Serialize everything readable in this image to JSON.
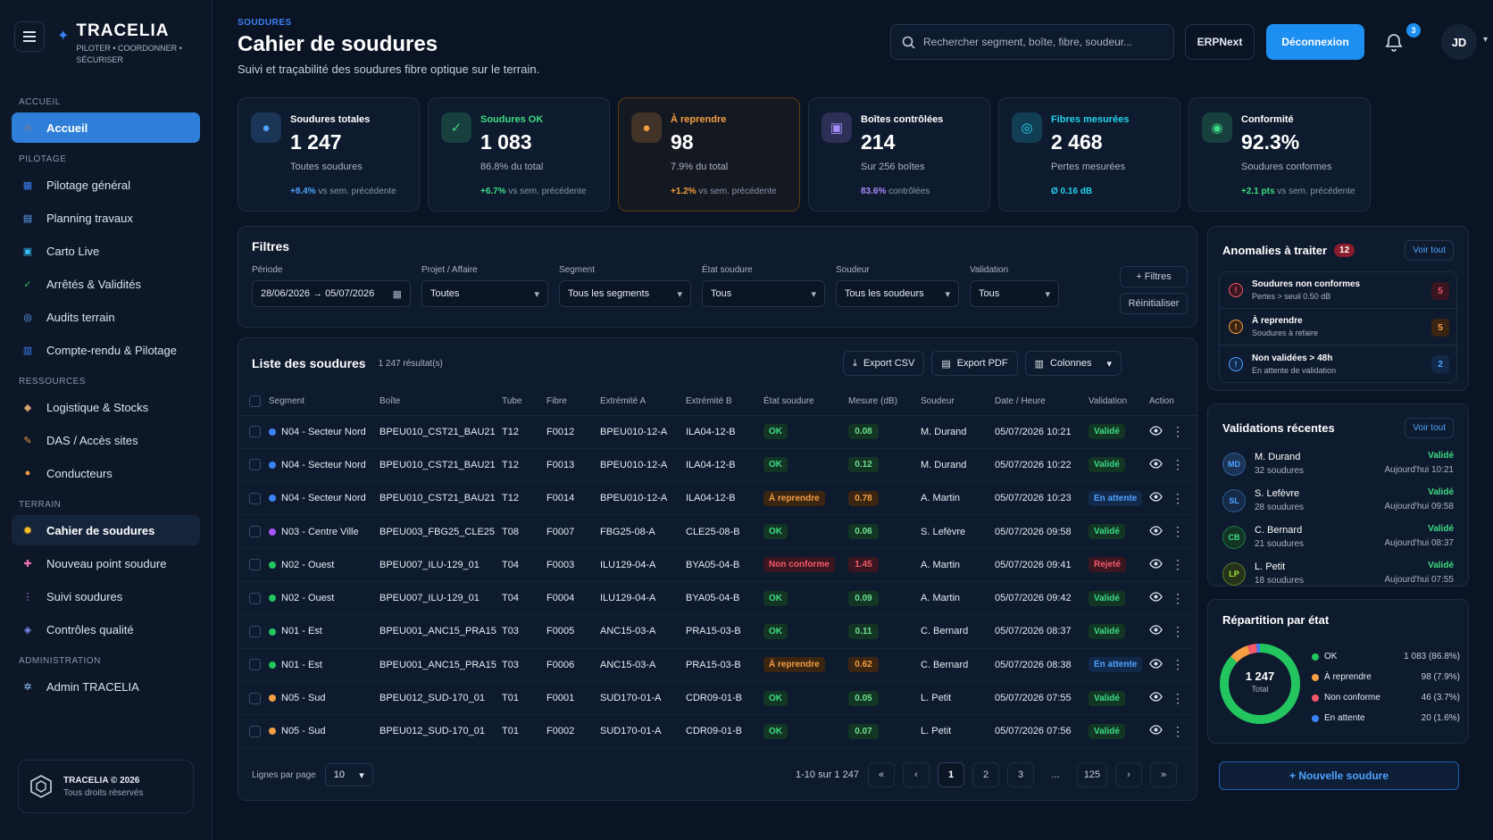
{
  "brand": {
    "name": "TRACELIA",
    "tagline": "PILOTER • COORDONNER • SÉCURISER"
  },
  "sidebar": {
    "sections": [
      {
        "title": "ACCUEIL",
        "items": [
          {
            "label": "Accueil",
            "icon": "home-icon"
          }
        ]
      },
      {
        "title": "PILOTAGE",
        "items": [
          {
            "label": "Pilotage général",
            "icon": "chart-icon"
          },
          {
            "label": "Planning travaux",
            "icon": "calendar-icon"
          },
          {
            "label": "Carto Live",
            "icon": "map-icon"
          },
          {
            "label": "Arrêtés & Validités",
            "icon": "shield-check-icon"
          },
          {
            "label": "Audits terrain",
            "icon": "audit-icon"
          },
          {
            "label": "Compte-rendu & Pilotage",
            "icon": "report-icon"
          }
        ]
      },
      {
        "title": "RESSOURCES",
        "items": [
          {
            "label": "Logistique & Stocks",
            "icon": "box-icon"
          },
          {
            "label": "DAS / Accès sites",
            "icon": "key-icon"
          },
          {
            "label": "Conducteurs",
            "icon": "user-icon"
          }
        ]
      },
      {
        "title": "TERRAIN",
        "items": [
          {
            "label": "Cahier de soudures",
            "icon": "spark-icon"
          },
          {
            "label": "Nouveau point soudure",
            "icon": "plus-point-icon"
          },
          {
            "label": "Suivi soudures",
            "icon": "track-icon"
          },
          {
            "label": "Contrôles qualité",
            "icon": "quality-icon"
          }
        ]
      },
      {
        "title": "ADMINISTRATION",
        "items": [
          {
            "label": "Admin TRACELIA",
            "icon": "gear-icon"
          }
        ]
      }
    ],
    "footer": {
      "line1": "TRACELIA © 2026",
      "line2": "Tous droits réservés"
    }
  },
  "header": {
    "breadcrumb": "SOUDURES",
    "title": "Cahier de soudures",
    "subtitle": "Suivi et traçabilité des soudures fibre optique sur le terrain.",
    "search_placeholder": "Rechercher segment, boîte, fibre, soudeur...",
    "erp_label": "ERPNext",
    "logout_label": "Déconnexion",
    "notif_count": "3",
    "user_initials": "JD"
  },
  "kpis": [
    {
      "label": "Soudures totales",
      "value": "1 247",
      "sub": "Toutes soudures",
      "trend": "+8.4%",
      "trend_note": " vs sem. précédente",
      "color": "#4ea3ff",
      "label_color": "#ffffff"
    },
    {
      "label": "Soudures OK",
      "value": "1 083",
      "sub": "86.8% du total",
      "trend": "+6.7%",
      "trend_note": " vs sem. précédente",
      "color": "#3ddc84",
      "label_color": "#3ddc84"
    },
    {
      "label": "À reprendre",
      "value": "98",
      "sub": "7.9% du total",
      "trend": "+1.2%",
      "trend_note": " vs sem. précédente",
      "color": "#f59e42",
      "label_color": "#f59e42"
    },
    {
      "label": "Boîtes contrôlées",
      "value": "214",
      "sub": "Sur 256 boîtes",
      "trend": "83.6%",
      "trend_note": " contrôlées",
      "color": "#a78bfa",
      "label_color": "#ffffff"
    },
    {
      "label": "Fibres mesurées",
      "value": "2 468",
      "sub": "Pertes mesurées",
      "trend": "Ø 0.16 dB",
      "trend_note": "",
      "color": "#22d3ee",
      "label_color": "#22d3ee"
    },
    {
      "label": "Conformité",
      "value": "92.3%",
      "sub": "Soudures conformes",
      "trend": "+2.1 pts",
      "trend_note": " vs sem. précédente",
      "color": "#3ddc84",
      "label_color": "#ffffff"
    }
  ],
  "filters": {
    "title": "Filtres",
    "fields": [
      {
        "label": "Période",
        "value": "28/06/2026 → 05/07/2026"
      },
      {
        "label": "Projet / Affaire",
        "value": "Toutes"
      },
      {
        "label": "Segment",
        "value": "Tous les segments"
      },
      {
        "label": "État soudure",
        "value": "Tous"
      },
      {
        "label": "Soudeur",
        "value": "Tous les soudeurs"
      },
      {
        "label": "Validation",
        "value": "Tous"
      }
    ],
    "btn_filters": "+ Filtres",
    "btn_reset": "Réinitialiser"
  },
  "table": {
    "title": "Liste des soudures",
    "count": "1 247 résultat(s)",
    "export_csv": "Export CSV",
    "export_pdf": "Export PDF",
    "columns_btn": "Colonnes",
    "headers": [
      "Segment",
      "Boîte",
      "Tube",
      "Fibre",
      "Extrémité A",
      "Extrémité B",
      "État soudure",
      "Mesure (dB)",
      "Soudeur",
      "Date / Heure",
      "Validation",
      "Action"
    ],
    "rows": [
      {
        "dot": "#3b82f6",
        "segment": "N04 - Secteur Nord",
        "boite": "BPEU010_CST21_BAU21",
        "tube": "T12",
        "fibre": "F0012",
        "extA": "BPEU010-12-A",
        "extB": "ILA04-12-B",
        "etat": "OK",
        "etat_k": "ok",
        "mesure": "0.08",
        "mes_k": "g",
        "soudeur": "M. Durand",
        "date": "05/07/2026 10:21",
        "valid": "Validé",
        "valid_k": "ok"
      },
      {
        "dot": "#3b82f6",
        "segment": "N04 - Secteur Nord",
        "boite": "BPEU010_CST21_BAU21",
        "tube": "T12",
        "fibre": "F0013",
        "extA": "BPEU010-12-A",
        "extB": "ILA04-12-B",
        "etat": "OK",
        "etat_k": "ok",
        "mesure": "0.12",
        "mes_k": "g",
        "soudeur": "M. Durand",
        "date": "05/07/2026 10:22",
        "valid": "Validé",
        "valid_k": "ok"
      },
      {
        "dot": "#3b82f6",
        "segment": "N04 - Secteur Nord",
        "boite": "BPEU010_CST21_BAU21",
        "tube": "T12",
        "fibre": "F0014",
        "extA": "BPEU010-12-A",
        "extB": "ILA04-12-B",
        "etat": "À reprendre",
        "etat_k": "rep",
        "mesure": "0.78",
        "mes_k": "o",
        "soudeur": "A. Martin",
        "date": "05/07/2026 10:23",
        "valid": "En attente",
        "valid_k": "att"
      },
      {
        "dot": "#a855f7",
        "segment": "N03 - Centre Ville",
        "boite": "BPEU003_FBG25_CLE25",
        "tube": "T08",
        "fibre": "F0007",
        "extA": "FBG25-08-A",
        "extB": "CLE25-08-B",
        "etat": "OK",
        "etat_k": "ok",
        "mesure": "0.06",
        "mes_k": "g",
        "soudeur": "S. Lefèvre",
        "date": "05/07/2026 09:58",
        "valid": "Validé",
        "valid_k": "ok"
      },
      {
        "dot": "#22c55e",
        "segment": "N02 - Ouest",
        "boite": "BPEU007_ILU-129_01",
        "tube": "T04",
        "fibre": "F0003",
        "extA": "ILU129-04-A",
        "extB": "BYA05-04-B",
        "etat": "Non conforme",
        "etat_k": "nc",
        "mesure": "1.45",
        "mes_k": "r",
        "soudeur": "A. Martin",
        "date": "05/07/2026 09:41",
        "valid": "Rejeté",
        "valid_k": "nc"
      },
      {
        "dot": "#22c55e",
        "segment": "N02 - Ouest",
        "boite": "BPEU007_ILU-129_01",
        "tube": "T04",
        "fibre": "F0004",
        "extA": "ILU129-04-A",
        "extB": "BYA05-04-B",
        "etat": "OK",
        "etat_k": "ok",
        "mesure": "0.09",
        "mes_k": "g",
        "soudeur": "A. Martin",
        "date": "05/07/2026 09:42",
        "valid": "Validé",
        "valid_k": "ok"
      },
      {
        "dot": "#22c55e",
        "segment": "N01 - Est",
        "boite": "BPEU001_ANC15_PRA15",
        "tube": "T03",
        "fibre": "F0005",
        "extA": "ANC15-03-A",
        "extB": "PRA15-03-B",
        "etat": "OK",
        "etat_k": "ok",
        "mesure": "0.11",
        "mes_k": "g",
        "soudeur": "C. Bernard",
        "date": "05/07/2026 08:37",
        "valid": "Validé",
        "valid_k": "ok"
      },
      {
        "dot": "#22c55e",
        "segment": "N01 - Est",
        "boite": "BPEU001_ANC15_PRA15",
        "tube": "T03",
        "fibre": "F0006",
        "extA": "ANC15-03-A",
        "extB": "PRA15-03-B",
        "etat": "À reprendre",
        "etat_k": "rep",
        "mesure": "0.62",
        "mes_k": "o",
        "soudeur": "C. Bernard",
        "date": "05/07/2026 08:38",
        "valid": "En attente",
        "valid_k": "att"
      },
      {
        "dot": "#f59e42",
        "segment": "N05 - Sud",
        "boite": "BPEU012_SUD-170_01",
        "tube": "T01",
        "fibre": "F0001",
        "extA": "SUD170-01-A",
        "extB": "CDR09-01-B",
        "etat": "OK",
        "etat_k": "ok",
        "mesure": "0.05",
        "mes_k": "g",
        "soudeur": "L. Petit",
        "date": "05/07/2026 07:55",
        "valid": "Validé",
        "valid_k": "ok"
      },
      {
        "dot": "#f59e42",
        "segment": "N05 - Sud",
        "boite": "BPEU012_SUD-170_01",
        "tube": "T01",
        "fibre": "F0002",
        "extA": "SUD170-01-A",
        "extB": "CDR09-01-B",
        "etat": "OK",
        "etat_k": "ok",
        "mesure": "0.07",
        "mes_k": "g",
        "soudeur": "L. Petit",
        "date": "05/07/2026 07:56",
        "valid": "Validé",
        "valid_k": "ok"
      }
    ],
    "pager": {
      "rows_label": "Lignes par page",
      "rows_value": "10",
      "info": "1-10 sur 1 247",
      "pages": [
        "1",
        "2",
        "3",
        "...",
        "125"
      ]
    }
  },
  "anomalies": {
    "title": "Anomalies à traiter",
    "count": "12",
    "see_all": "Voir tout",
    "items": [
      {
        "title": "Soudures non conformes",
        "sub": "Pertes > seuil 0.50 dB",
        "n": "5",
        "color": "#f5596a",
        "bg": "#3a1620"
      },
      {
        "title": "À reprendre",
        "sub": "Soudures à refaire",
        "n": "5",
        "color": "#f59e42",
        "bg": "#3a2512"
      },
      {
        "title": "Non validées > 48h",
        "sub": "En attente de validation",
        "n": "2",
        "color": "#4ea3ff",
        "bg": "#12294a"
      }
    ]
  },
  "validations": {
    "title": "Validations récentes",
    "see_all": "Voir tout",
    "items": [
      {
        "initials": "MD",
        "name": "M. Durand",
        "count": "32 soudures",
        "status": "Validé",
        "time": "Aujourd'hui 10:21",
        "color": "#4ea3ff",
        "bg": "#1b3354"
      },
      {
        "initials": "SL",
        "name": "S. Lefèvre",
        "count": "28 soudures",
        "status": "Validé",
        "time": "Aujourd'hui 09:58",
        "color": "#4ea3ff",
        "bg": "#142a47"
      },
      {
        "initials": "CB",
        "name": "C. Bernard",
        "count": "21 soudures",
        "status": "Validé",
        "time": "Aujourd'hui 08:37",
        "color": "#3ddc84",
        "bg": "#123524"
      },
      {
        "initials": "LP",
        "name": "L. Petit",
        "count": "18 soudures",
        "status": "Validé",
        "time": "Aujourd'hui 07:55",
        "color": "#a3e635",
        "bg": "#26331a"
      }
    ]
  },
  "repartition": {
    "title": "Répartition par état",
    "total": "1 247",
    "total_label": "Total",
    "items": [
      {
        "label": "OK",
        "value": 1083,
        "display": "1 083 (86.8%)",
        "color": "#22c55e"
      },
      {
        "label": "À reprendre",
        "value": 98,
        "display": "98 (7.9%)",
        "color": "#f59e42"
      },
      {
        "label": "Non conforme",
        "value": 46,
        "display": "46 (3.7%)",
        "color": "#f5596a"
      },
      {
        "label": "En attente",
        "value": 20,
        "display": "20 (1.6%)",
        "color": "#3b82f6"
      }
    ]
  },
  "new_button": "+ Nouvelle soudure"
}
